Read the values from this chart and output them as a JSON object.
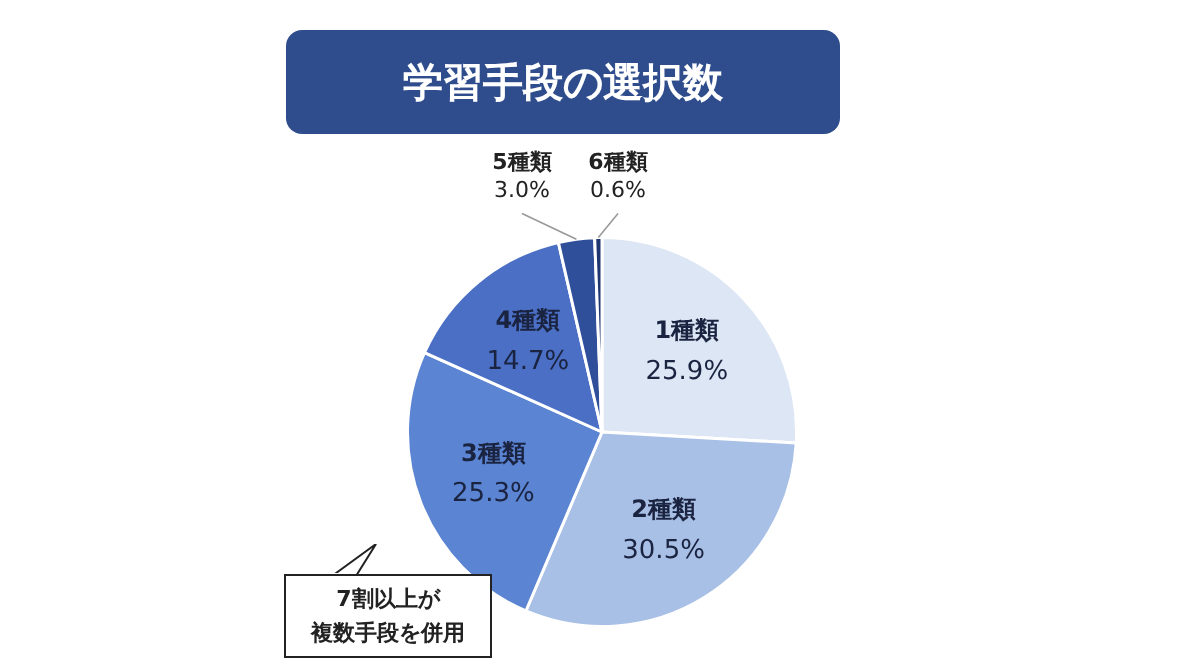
{
  "chart_data": {
    "type": "pie",
    "title": "学習手段の選択数",
    "categories": [
      "1種類",
      "2種類",
      "3種類",
      "4種類",
      "5種類",
      "6種類"
    ],
    "values": [
      25.9,
      30.5,
      25.3,
      14.7,
      3.0,
      0.6
    ],
    "value_labels": [
      "25.9%",
      "30.5%",
      "25.3%",
      "14.7%",
      "3.0%",
      "0.6%"
    ],
    "colors": [
      "#dce6f4",
      "#a9c0e6",
      "#5b84d2",
      "#4a6fc4",
      "#2f4f9a",
      "#1f3570"
    ],
    "legend": false,
    "annotations": [
      "7割以上が",
      "複数手段を併用"
    ]
  }
}
